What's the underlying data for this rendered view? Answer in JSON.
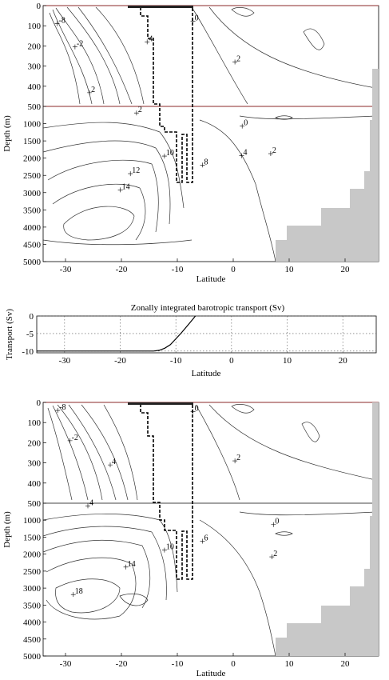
{
  "chart_data": [
    {
      "type": "contour",
      "panel": "top",
      "xlabel": "Latitude",
      "ylabel": "Depth (m)",
      "xlim": [
        -34,
        26
      ],
      "ylim_upper": [
        0,
        500
      ],
      "ylim_lower": [
        500,
        5000
      ],
      "xticks": [
        "-30",
        "-20",
        "-10",
        "0",
        "10",
        "20"
      ],
      "yticks": [
        "0",
        "100",
        "200",
        "300",
        "400",
        "500",
        "1000",
        "1500",
        "2000",
        "2500",
        "3000",
        "3500",
        "4000",
        "4500",
        "5000"
      ],
      "contour_labels": [
        {
          "text": "-8",
          "lat": -31.5,
          "depth": 90
        },
        {
          "text": "-2",
          "lat": -28.3,
          "depth": 205
        },
        {
          "text": "4",
          "lat": -15.4,
          "depth": 180
        },
        {
          "text": "2",
          "lat": -25.7,
          "depth": 432
        },
        {
          "text": "0",
          "lat": -7.2,
          "depth": 78
        },
        {
          "text": "2",
          "lat": 0.3,
          "depth": 280
        },
        {
          "text": "2",
          "lat": -17.3,
          "depth": 690
        },
        {
          "text": "0",
          "lat": 1.6,
          "depth": 1070
        },
        {
          "text": "10",
          "lat": -12.3,
          "depth": 1940
        },
        {
          "text": "8",
          "lat": -5.5,
          "depth": 2200
        },
        {
          "text": "4",
          "lat": 1.5,
          "depth": 1930
        },
        {
          "text": "2",
          "lat": 6.7,
          "depth": 1870
        },
        {
          "text": "12",
          "lat": -18.4,
          "depth": 2450
        },
        {
          "text": "14",
          "lat": -20.2,
          "depth": 2920
        }
      ]
    },
    {
      "type": "line",
      "panel": "middle",
      "title": "Zonally integrated barotropic transport (Sv)",
      "xlabel": "Latitude",
      "ylabel": "Transport (Sv)",
      "xlim": [
        -35,
        26
      ],
      "ylim": [
        -10.5,
        0
      ],
      "xticks": [
        "-30",
        "-20",
        "-10",
        "0",
        "10",
        "20"
      ],
      "yticks": [
        "0",
        "-5",
        "-10"
      ],
      "x": [
        -35,
        -30,
        -20,
        -14,
        -13,
        -12,
        -11,
        -10,
        -9,
        -8,
        -7,
        -6.5
      ],
      "y": [
        -10,
        -10,
        -10,
        -10,
        -9.8,
        -9.2,
        -8.2,
        -6.5,
        -4.8,
        -2.9,
        -1.0,
        0
      ]
    },
    {
      "type": "contour",
      "panel": "bottom",
      "xlabel": "Latitude",
      "ylabel": "Depth (m)",
      "xlim": [
        -34,
        26
      ],
      "ylim_upper": [
        0,
        500
      ],
      "ylim_lower": [
        500,
        5000
      ],
      "xticks": [
        "-30",
        "-20",
        "-10",
        "0",
        "10",
        "20"
      ],
      "yticks": [
        "0",
        "100",
        "200",
        "300",
        "400",
        "500",
        "1000",
        "1500",
        "2000",
        "2500",
        "3000",
        "3500",
        "4000",
        "4500",
        "5000"
      ],
      "contour_labels": [
        {
          "text": "-8",
          "lat": -31.4,
          "depth": 40
        },
        {
          "text": "-2",
          "lat": -29.2,
          "depth": 190
        },
        {
          "text": "4",
          "lat": -22.0,
          "depth": 310
        },
        {
          "text": "0",
          "lat": -7.2,
          "depth": 45
        },
        {
          "text": "2",
          "lat": 0.3,
          "depth": 290
        },
        {
          "text": "4",
          "lat": -26.0,
          "depth": 580
        },
        {
          "text": "0",
          "lat": 7.2,
          "depth": 1130
        },
        {
          "text": "6",
          "lat": -5.5,
          "depth": 1620
        },
        {
          "text": "10",
          "lat": -12.3,
          "depth": 1880
        },
        {
          "text": "2",
          "lat": 6.9,
          "depth": 2080
        },
        {
          "text": "14",
          "lat": -19.2,
          "depth": 2380
        },
        {
          "text": "18",
          "lat": -28.6,
          "depth": 3190
        }
      ]
    }
  ]
}
